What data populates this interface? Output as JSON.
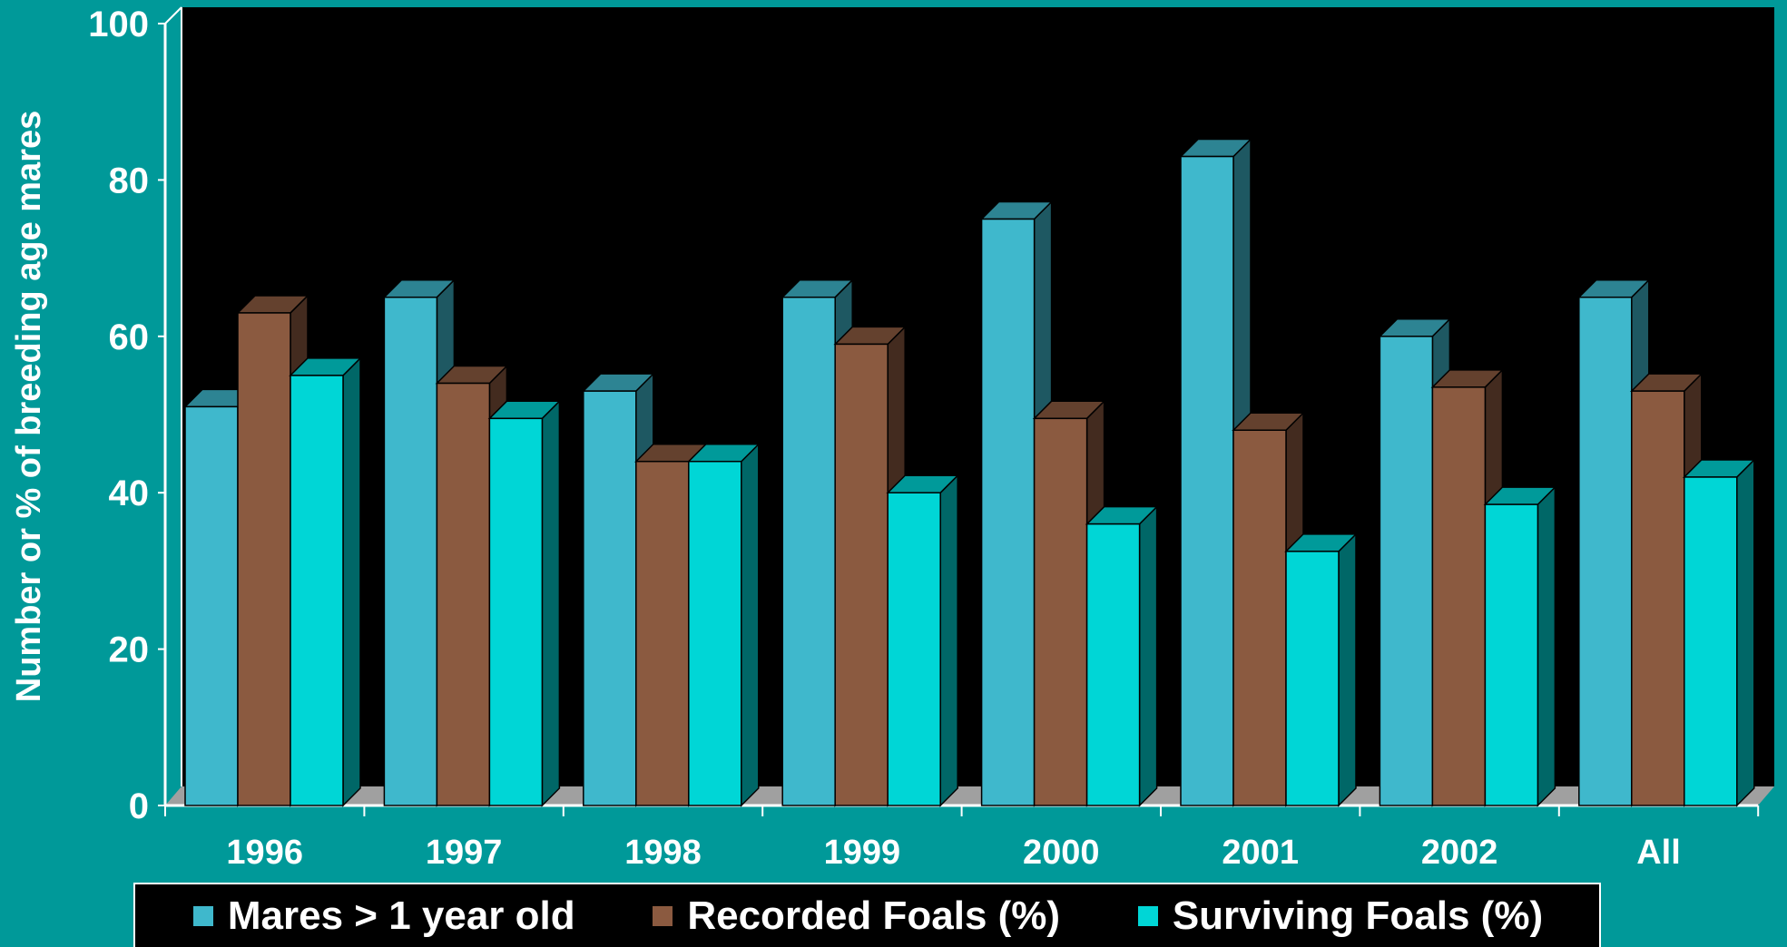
{
  "chart_data": {
    "type": "bar",
    "ylabel": "Number or % of breeding age mares",
    "ylim": [
      0,
      100
    ],
    "yticks": [
      0,
      20,
      40,
      60,
      80,
      100
    ],
    "categories": [
      "1996",
      "1997",
      "1998",
      "1999",
      "2000",
      "2001",
      "2002",
      "All"
    ],
    "series": [
      {
        "name": "Mares > 1 year old",
        "color": "#3fb8cc",
        "values": [
          51,
          65,
          53,
          65,
          75,
          83,
          60,
          65
        ]
      },
      {
        "name": "Recorded Foals (%)",
        "color": "#8b5a40",
        "values": [
          63,
          54,
          44,
          59,
          49.5,
          48,
          53.5,
          53
        ]
      },
      {
        "name": "Surviving Foals (%)",
        "color": "#00d6d6",
        "values": [
          55,
          49.5,
          44,
          40,
          36,
          32.5,
          38.5,
          42
        ]
      }
    ],
    "legend_position": "bottom",
    "plot_background": "#000000",
    "page_background": "#009999",
    "style": "3d"
  }
}
